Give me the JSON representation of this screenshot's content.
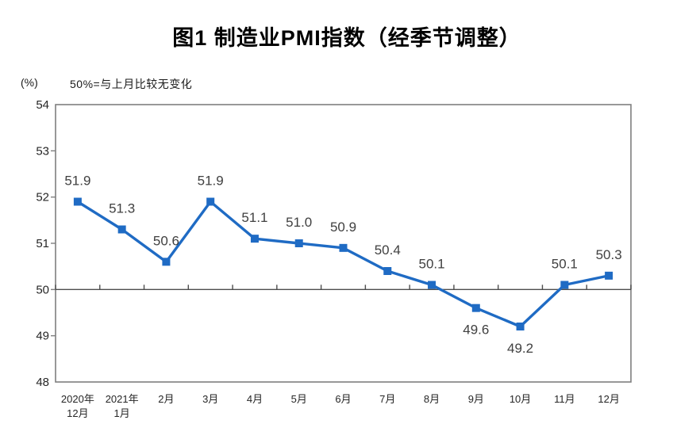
{
  "chart_data": {
    "type": "line",
    "title": "图1 制造业PMI指数（经季节调整）",
    "unit_label": "(%)",
    "subtitle": "50%=与上月比较无变化",
    "categories": [
      {
        "line1": "2020年",
        "line2": "12月"
      },
      {
        "line1": "2021年",
        "line2": "1月"
      },
      {
        "line1": "2月",
        "line2": ""
      },
      {
        "line1": "3月",
        "line2": ""
      },
      {
        "line1": "4月",
        "line2": ""
      },
      {
        "line1": "5月",
        "line2": ""
      },
      {
        "line1": "6月",
        "line2": ""
      },
      {
        "line1": "7月",
        "line2": ""
      },
      {
        "line1": "8月",
        "line2": ""
      },
      {
        "line1": "9月",
        "line2": ""
      },
      {
        "line1": "10月",
        "line2": ""
      },
      {
        "line1": "11月",
        "line2": ""
      },
      {
        "line1": "12月",
        "line2": ""
      }
    ],
    "series": [
      {
        "name": "制造业PMI",
        "values": [
          51.9,
          51.3,
          50.6,
          51.9,
          51.1,
          51.0,
          50.9,
          50.4,
          50.1,
          49.6,
          49.2,
          50.1,
          50.3
        ],
        "label_positions": [
          "above",
          "above",
          "above",
          "above",
          "above",
          "above",
          "above",
          "above",
          "above",
          "below",
          "below",
          "above",
          "above"
        ]
      }
    ],
    "ylim": [
      48,
      54
    ],
    "yticks": [
      48,
      49,
      50,
      51,
      52,
      53,
      54
    ],
    "reference_line": 50,
    "grid": "off",
    "legend": "none",
    "colors": {
      "series": "#1f6bc4",
      "frame": "#7f7f7f",
      "reference_line": "#4d4d4d",
      "axis_text": "#262626",
      "data_label_text": "#404040"
    }
  }
}
